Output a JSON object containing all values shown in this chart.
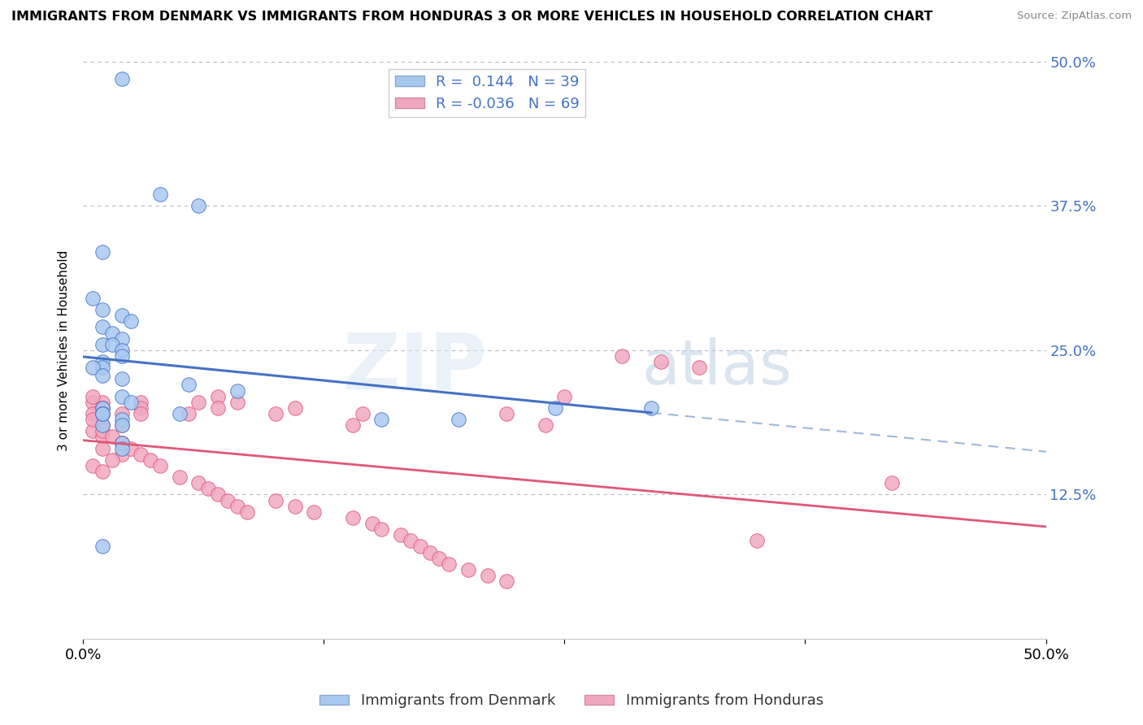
{
  "title": "IMMIGRANTS FROM DENMARK VS IMMIGRANTS FROM HONDURAS 3 OR MORE VEHICLES IN HOUSEHOLD CORRELATION CHART",
  "source": "Source: ZipAtlas.com",
  "ylabel": "3 or more Vehicles in Household",
  "xlim": [
    0.0,
    0.5
  ],
  "ylim": [
    0.0,
    0.5
  ],
  "yticks": [
    0.0,
    0.125,
    0.25,
    0.375,
    0.5
  ],
  "ytick_labels": [
    "",
    "12.5%",
    "25.0%",
    "37.5%",
    "50.0%"
  ],
  "denmark_R": 0.144,
  "denmark_N": 39,
  "honduras_R": -0.036,
  "honduras_N": 69,
  "legend_denmark": "Immigrants from Denmark",
  "legend_honduras": "Immigrants from Honduras",
  "dot_color_denmark": "#a8c8f0",
  "dot_color_honduras": "#f0a8c0",
  "line_color_denmark": "#4472c4",
  "line_color_honduras": "#e05878",
  "dashed_color": "#a0b8d8",
  "watermark_zip": "ZIP",
  "watermark_atlas": "atlas",
  "denmark_x": [
    0.02,
    0.04,
    0.06,
    0.01,
    0.005,
    0.01,
    0.02,
    0.025,
    0.01,
    0.015,
    0.02,
    0.01,
    0.015,
    0.02,
    0.02,
    0.01,
    0.01,
    0.005,
    0.01,
    0.02,
    0.055,
    0.08,
    0.02,
    0.025,
    0.01,
    0.01,
    0.02,
    0.155,
    0.195,
    0.245,
    0.295,
    0.01,
    0.02,
    0.02,
    0.01,
    0.01,
    0.01,
    0.05,
    0.02
  ],
  "denmark_y": [
    0.485,
    0.385,
    0.375,
    0.335,
    0.295,
    0.285,
    0.28,
    0.275,
    0.27,
    0.265,
    0.26,
    0.255,
    0.255,
    0.25,
    0.245,
    0.24,
    0.235,
    0.235,
    0.228,
    0.225,
    0.22,
    0.215,
    0.21,
    0.205,
    0.2,
    0.195,
    0.19,
    0.19,
    0.19,
    0.2,
    0.2,
    0.185,
    0.17,
    0.165,
    0.08,
    0.195,
    0.195,
    0.195,
    0.185
  ],
  "honduras_x": [
    0.005,
    0.01,
    0.01,
    0.005,
    0.02,
    0.01,
    0.01,
    0.005,
    0.01,
    0.02,
    0.01,
    0.02,
    0.015,
    0.005,
    0.01,
    0.03,
    0.03,
    0.03,
    0.06,
    0.07,
    0.07,
    0.055,
    0.08,
    0.1,
    0.11,
    0.14,
    0.145,
    0.005,
    0.01,
    0.01,
    0.005,
    0.02,
    0.01,
    0.015,
    0.02,
    0.025,
    0.03,
    0.035,
    0.04,
    0.05,
    0.06,
    0.065,
    0.07,
    0.075,
    0.08,
    0.085,
    0.1,
    0.11,
    0.12,
    0.14,
    0.15,
    0.155,
    0.165,
    0.17,
    0.175,
    0.18,
    0.185,
    0.19,
    0.2,
    0.21,
    0.22,
    0.22,
    0.24,
    0.25,
    0.28,
    0.3,
    0.32,
    0.35,
    0.42
  ],
  "honduras_y": [
    0.205,
    0.205,
    0.2,
    0.195,
    0.195,
    0.185,
    0.185,
    0.18,
    0.175,
    0.17,
    0.165,
    0.16,
    0.155,
    0.15,
    0.145,
    0.205,
    0.2,
    0.195,
    0.205,
    0.21,
    0.2,
    0.195,
    0.205,
    0.195,
    0.2,
    0.185,
    0.195,
    0.21,
    0.2,
    0.195,
    0.19,
    0.185,
    0.18,
    0.175,
    0.17,
    0.165,
    0.16,
    0.155,
    0.15,
    0.14,
    0.135,
    0.13,
    0.125,
    0.12,
    0.115,
    0.11,
    0.12,
    0.115,
    0.11,
    0.105,
    0.1,
    0.095,
    0.09,
    0.085,
    0.08,
    0.075,
    0.07,
    0.065,
    0.06,
    0.055,
    0.05,
    0.195,
    0.185,
    0.21,
    0.245,
    0.24,
    0.235,
    0.085,
    0.135
  ]
}
